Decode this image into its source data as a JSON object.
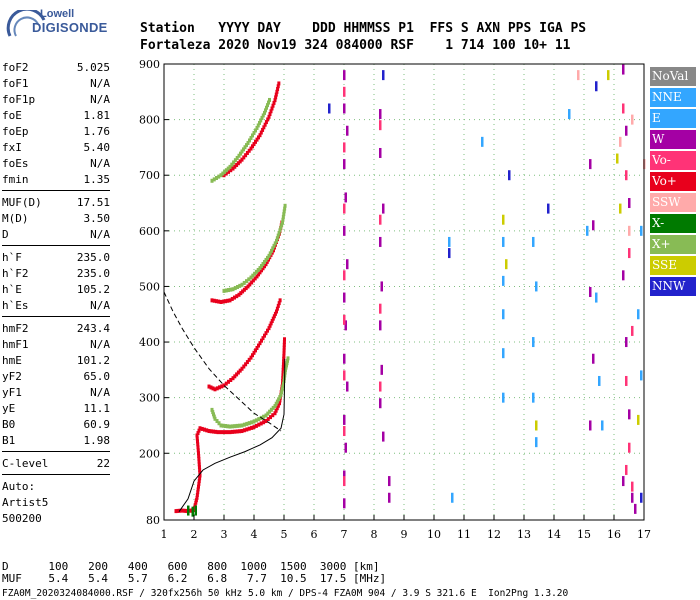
{
  "logo": {
    "line1": "Lowell",
    "line2": "DIGISONDE"
  },
  "header": {
    "labels": [
      "Station",
      "YYYY",
      "DAY",
      "DDD",
      "HHMMSS",
      "P1",
      "FFS",
      "S",
      "AXN",
      "PPS",
      "IGA",
      "PS"
    ],
    "values": [
      "Fortaleza",
      "2020",
      "Nov19",
      "324",
      "084000",
      "RSF",
      "1",
      "714",
      "100",
      "10+",
      "11"
    ]
  },
  "parameters": [
    [
      {
        "name": "foF2",
        "value": "5.025"
      },
      {
        "name": "foF1",
        "value": "N/A"
      },
      {
        "name": "foF1p",
        "value": "N/A"
      },
      {
        "name": "foE",
        "value": "1.81"
      },
      {
        "name": "foEp",
        "value": "1.76"
      },
      {
        "name": "fxI",
        "value": "5.40"
      },
      {
        "name": "foEs",
        "value": "N/A"
      },
      {
        "name": "fmin",
        "value": "1.35"
      }
    ],
    [
      {
        "name": "MUF(D)",
        "value": "17.51"
      },
      {
        "name": "M(D)",
        "value": "3.50"
      },
      {
        "name": "D",
        "value": "N/A"
      }
    ],
    [
      {
        "name": "h`F",
        "value": "235.0"
      },
      {
        "name": "h`F2",
        "value": "235.0"
      },
      {
        "name": "h`E",
        "value": "105.2"
      },
      {
        "name": "h`Es",
        "value": "N/A"
      }
    ],
    [
      {
        "name": "hmF2",
        "value": "243.4"
      },
      {
        "name": "hmF1",
        "value": "N/A"
      },
      {
        "name": "hmE",
        "value": "101.2"
      },
      {
        "name": "yF2",
        "value": "65.0"
      },
      {
        "name": "yF1",
        "value": "N/A"
      },
      {
        "name": "yE",
        "value": "11.1"
      },
      {
        "name": "B0",
        "value": "60.9"
      },
      {
        "name": "B1",
        "value": "1.98"
      }
    ],
    [
      {
        "name": "C-level",
        "value": "22"
      }
    ]
  ],
  "autoscaler": {
    "line1": "Auto:",
    "line2": "Artist5",
    "line3": "500200"
  },
  "legend": [
    {
      "label": "NoVal",
      "color": "#888888"
    },
    {
      "label": "NNE",
      "color": "#33a6ff"
    },
    {
      "label": "E",
      "color": "#33a6ff"
    },
    {
      "label": "W",
      "color": "#a400a4"
    },
    {
      "label": "Vo-",
      "color": "#ff3377"
    },
    {
      "label": "Vo+",
      "color": "#e8001c"
    },
    {
      "label": "SSW",
      "color": "#ffaaaa"
    },
    {
      "label": "X-",
      "color": "#007a00"
    },
    {
      "label": "X+",
      "color": "#88bb55"
    },
    {
      "label": "SSE",
      "color": "#cccc00"
    },
    {
      "label": "NNW",
      "color": "#2222cc"
    }
  ],
  "footer": {
    "row1_label": "D",
    "row1": [
      "100",
      "200",
      "400",
      "600",
      "800",
      "1000",
      "1500",
      "3000"
    ],
    "row1_unit": "[km]",
    "row2_label": "MUF",
    "row2": [
      "5.4",
      "5.4",
      "5.7",
      "6.2",
      "6.8",
      "7.7",
      "10.5",
      "17.5"
    ],
    "row2_unit": "[MHz]",
    "info": "FZA0M_2020324084000.RSF / 320fx256h 50 kHz 5.0 km / DPS-4 FZA0M 904 / 3.9 S 321.6 E  Ion2Png 1.3.20"
  },
  "chart_data": {
    "type": "scatter",
    "xlim": [
      1,
      17
    ],
    "ylim": [
      80,
      900
    ],
    "x_ticks": [
      "1",
      "2",
      "3",
      "4",
      "5",
      "6",
      "7",
      "8",
      "9",
      "10",
      "11",
      "12",
      "13",
      "14",
      "15",
      "16",
      "17"
    ],
    "y_ticks": [
      "80",
      "200",
      "300",
      "400",
      "500",
      "600",
      "700",
      "800",
      "900"
    ],
    "grid": true,
    "profile_dashed": [
      [
        1,
        490
      ],
      [
        1.3,
        455
      ],
      [
        1.6,
        425
      ],
      [
        2.0,
        390
      ],
      [
        2.5,
        352
      ],
      [
        3.0,
        322
      ],
      [
        3.5,
        297
      ],
      [
        4.0,
        272
      ],
      [
        4.5,
        255
      ],
      [
        4.9,
        240
      ]
    ],
    "profile_solid": [
      [
        1.5,
        95
      ],
      [
        1.8,
        118
      ],
      [
        2.0,
        150
      ],
      [
        2.3,
        170
      ],
      [
        2.7,
        182
      ],
      [
        3.2,
        193
      ],
      [
        3.7,
        203
      ],
      [
        4.2,
        215
      ],
      [
        4.6,
        228
      ],
      [
        4.9,
        245
      ],
      [
        5.0,
        270
      ],
      [
        5.02,
        330
      ],
      [
        5.025,
        370
      ]
    ],
    "traces": [
      {
        "name": "Vo+",
        "points": [
          [
            1.4,
            96
          ],
          [
            1.6,
            97
          ],
          [
            1.8,
            96
          ],
          [
            2.0,
            98
          ],
          [
            2.1,
            120
          ],
          [
            2.2,
            160
          ],
          [
            2.15,
            200
          ],
          [
            2.1,
            232
          ],
          [
            2.2,
            245
          ],
          [
            2.5,
            240
          ],
          [
            2.8,
            238
          ],
          [
            3.2,
            238
          ],
          [
            3.6,
            240
          ],
          [
            4.0,
            247
          ],
          [
            4.4,
            258
          ],
          [
            4.7,
            272
          ],
          [
            4.85,
            290
          ],
          [
            4.95,
            325
          ],
          [
            5.0,
            380
          ],
          [
            5.02,
            410
          ]
        ]
      },
      {
        "name": "X+",
        "points": [
          [
            2.6,
            278
          ],
          [
            2.7,
            262
          ],
          [
            2.9,
            250
          ],
          [
            3.2,
            248
          ],
          [
            3.6,
            250
          ],
          [
            4.0,
            257
          ],
          [
            4.4,
            268
          ],
          [
            4.7,
            285
          ],
          [
            4.9,
            305
          ],
          [
            5.0,
            330
          ],
          [
            5.05,
            350
          ],
          [
            5.1,
            362
          ],
          [
            5.15,
            375
          ]
        ]
      },
      {
        "name": "Vo+",
        "points": [
          [
            2.5,
            320
          ],
          [
            2.7,
            315
          ],
          [
            3.0,
            322
          ],
          [
            3.3,
            335
          ],
          [
            3.6,
            352
          ],
          [
            3.9,
            372
          ],
          [
            4.2,
            398
          ],
          [
            4.5,
            425
          ],
          [
            4.75,
            455
          ],
          [
            4.9,
            480
          ]
        ]
      },
      {
        "name": "Vo+",
        "points": [
          [
            2.6,
            475
          ],
          [
            2.9,
            472
          ],
          [
            3.2,
            475
          ],
          [
            3.5,
            485
          ],
          [
            3.8,
            500
          ],
          [
            4.1,
            518
          ],
          [
            4.4,
            540
          ],
          [
            4.65,
            565
          ],
          [
            4.85,
            595
          ],
          [
            4.95,
            620
          ]
        ]
      },
      {
        "name": "X+",
        "points": [
          [
            3.0,
            492
          ],
          [
            3.3,
            495
          ],
          [
            3.6,
            503
          ],
          [
            3.9,
            516
          ],
          [
            4.2,
            533
          ],
          [
            4.5,
            555
          ],
          [
            4.75,
            582
          ],
          [
            4.95,
            615
          ],
          [
            5.05,
            650
          ]
        ]
      },
      {
        "name": "Vo+",
        "points": [
          [
            3.0,
            700
          ],
          [
            3.3,
            712
          ],
          [
            3.6,
            728
          ],
          [
            3.9,
            748
          ],
          [
            4.2,
            772
          ],
          [
            4.5,
            805
          ],
          [
            4.7,
            835
          ],
          [
            4.85,
            870
          ]
        ]
      },
      {
        "name": "X+",
        "points": [
          [
            2.6,
            690
          ],
          [
            2.9,
            700
          ],
          [
            3.2,
            715
          ],
          [
            3.5,
            735
          ],
          [
            3.8,
            758
          ],
          [
            4.1,
            785
          ],
          [
            4.35,
            812
          ],
          [
            4.55,
            840
          ]
        ]
      },
      {
        "name": "W",
        "points": [
          [
            7.0,
            880
          ],
          [
            7.0,
            820
          ],
          [
            7.1,
            780
          ],
          [
            7.0,
            720
          ],
          [
            7.05,
            660
          ],
          [
            7.0,
            600
          ],
          [
            7.1,
            540
          ],
          [
            7.0,
            480
          ],
          [
            7.05,
            430
          ],
          [
            7.0,
            370
          ],
          [
            7.1,
            320
          ],
          [
            7.0,
            260
          ],
          [
            7.05,
            210
          ],
          [
            7.0,
            160
          ],
          [
            7.0,
            110
          ],
          [
            8.2,
            810
          ],
          [
            8.2,
            740
          ],
          [
            8.3,
            640
          ],
          [
            8.2,
            580
          ],
          [
            8.25,
            500
          ],
          [
            8.2,
            430
          ],
          [
            8.25,
            350
          ],
          [
            8.2,
            290
          ],
          [
            8.3,
            230
          ],
          [
            8.5,
            150
          ],
          [
            8.5,
            120
          ],
          [
            15.2,
            720
          ],
          [
            15.3,
            610
          ],
          [
            15.2,
            490
          ],
          [
            15.3,
            370
          ],
          [
            15.2,
            250
          ],
          [
            16.3,
            890
          ],
          [
            16.4,
            780
          ],
          [
            16.5,
            650
          ],
          [
            16.3,
            520
          ],
          [
            16.4,
            400
          ],
          [
            16.5,
            270
          ],
          [
            16.3,
            150
          ],
          [
            16.6,
            120
          ],
          [
            16.7,
            100
          ]
        ]
      },
      {
        "name": "Vo-",
        "points": [
          [
            7.0,
            850
          ],
          [
            7.0,
            750
          ],
          [
            7.0,
            640
          ],
          [
            7.0,
            520
          ],
          [
            7.0,
            440
          ],
          [
            7.0,
            340
          ],
          [
            7.0,
            240
          ],
          [
            7.0,
            150
          ],
          [
            8.2,
            790
          ],
          [
            8.2,
            620
          ],
          [
            8.2,
            460
          ],
          [
            8.2,
            320
          ],
          [
            16.3,
            820
          ],
          [
            16.4,
            700
          ],
          [
            16.5,
            560
          ],
          [
            16.6,
            420
          ],
          [
            16.4,
            330
          ],
          [
            16.5,
            210
          ],
          [
            16.4,
            170
          ],
          [
            16.6,
            140
          ]
        ]
      },
      {
        "name": "NNE",
        "points": [
          [
            12.3,
            580
          ],
          [
            12.3,
            510
          ],
          [
            12.3,
            450
          ],
          [
            12.3,
            380
          ],
          [
            12.3,
            300
          ],
          [
            13.3,
            580
          ],
          [
            13.4,
            500
          ],
          [
            13.3,
            400
          ],
          [
            13.3,
            300
          ],
          [
            13.4,
            220
          ],
          [
            11.6,
            760
          ],
          [
            14.5,
            810
          ],
          [
            15.1,
            600
          ],
          [
            15.4,
            480
          ],
          [
            15.5,
            330
          ],
          [
            15.6,
            250
          ],
          [
            16.9,
            600
          ],
          [
            16.8,
            450
          ],
          [
            16.9,
            340
          ],
          [
            10.6,
            120
          ],
          [
            10.5,
            580
          ]
        ]
      },
      {
        "name": "SSE",
        "points": [
          [
            12.3,
            620
          ],
          [
            12.4,
            540
          ],
          [
            13.4,
            250
          ],
          [
            15.8,
            880
          ],
          [
            16.1,
            730
          ],
          [
            16.2,
            640
          ],
          [
            16.8,
            260
          ]
        ]
      },
      {
        "name": "SSW",
        "points": [
          [
            14.8,
            880
          ],
          [
            16.5,
            600
          ],
          [
            16.6,
            800
          ],
          [
            17.0,
            720
          ],
          [
            16.2,
            760
          ]
        ]
      },
      {
        "name": "NNW",
        "points": [
          [
            6.5,
            820
          ],
          [
            8.3,
            880
          ],
          [
            10.5,
            560
          ],
          [
            12.5,
            700
          ],
          [
            13.8,
            640
          ],
          [
            15.4,
            860
          ],
          [
            16.9,
            120
          ]
        ]
      },
      {
        "name": "X-",
        "points": [
          [
            1.8,
            97
          ],
          [
            1.95,
            95
          ],
          [
            2.05,
            97
          ]
        ]
      }
    ]
  }
}
